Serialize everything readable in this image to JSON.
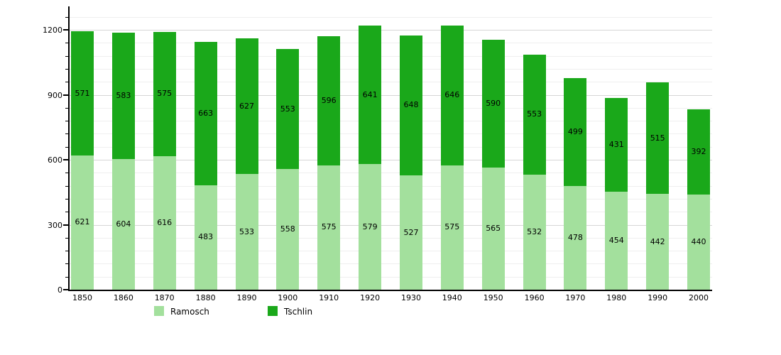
{
  "chart_data": {
    "type": "bar",
    "stacked": true,
    "title": "",
    "xlabel": "",
    "ylabel": "",
    "categories": [
      "1850",
      "1860",
      "1870",
      "1880",
      "1890",
      "1900",
      "1910",
      "1920",
      "1930",
      "1940",
      "1950",
      "1960",
      "1970",
      "1980",
      "1990",
      "2000"
    ],
    "series": [
      {
        "name": "Ramosch",
        "color": "#a3e09d",
        "values": [
          621,
          604,
          616,
          483,
          533,
          558,
          575,
          579,
          527,
          575,
          565,
          532,
          478,
          454,
          442,
          440
        ]
      },
      {
        "name": "Tschlin",
        "color": "#1aa81a",
        "values": [
          571,
          583,
          575,
          663,
          627,
          553,
          596,
          641,
          648,
          646,
          590,
          553,
          499,
          431,
          515,
          392
        ]
      }
    ],
    "ylim": [
      0,
      1200
    ],
    "yticks": [
      0,
      300,
      600,
      900,
      1200
    ],
    "minor_grid_step": 60,
    "grid": true,
    "legend_position": "bottom"
  },
  "colors": {
    "background": "#ffffff",
    "axis": "#000000",
    "grid_major": "#d6d6d6",
    "grid_minor": "#efefef",
    "label_text": "#000000"
  }
}
